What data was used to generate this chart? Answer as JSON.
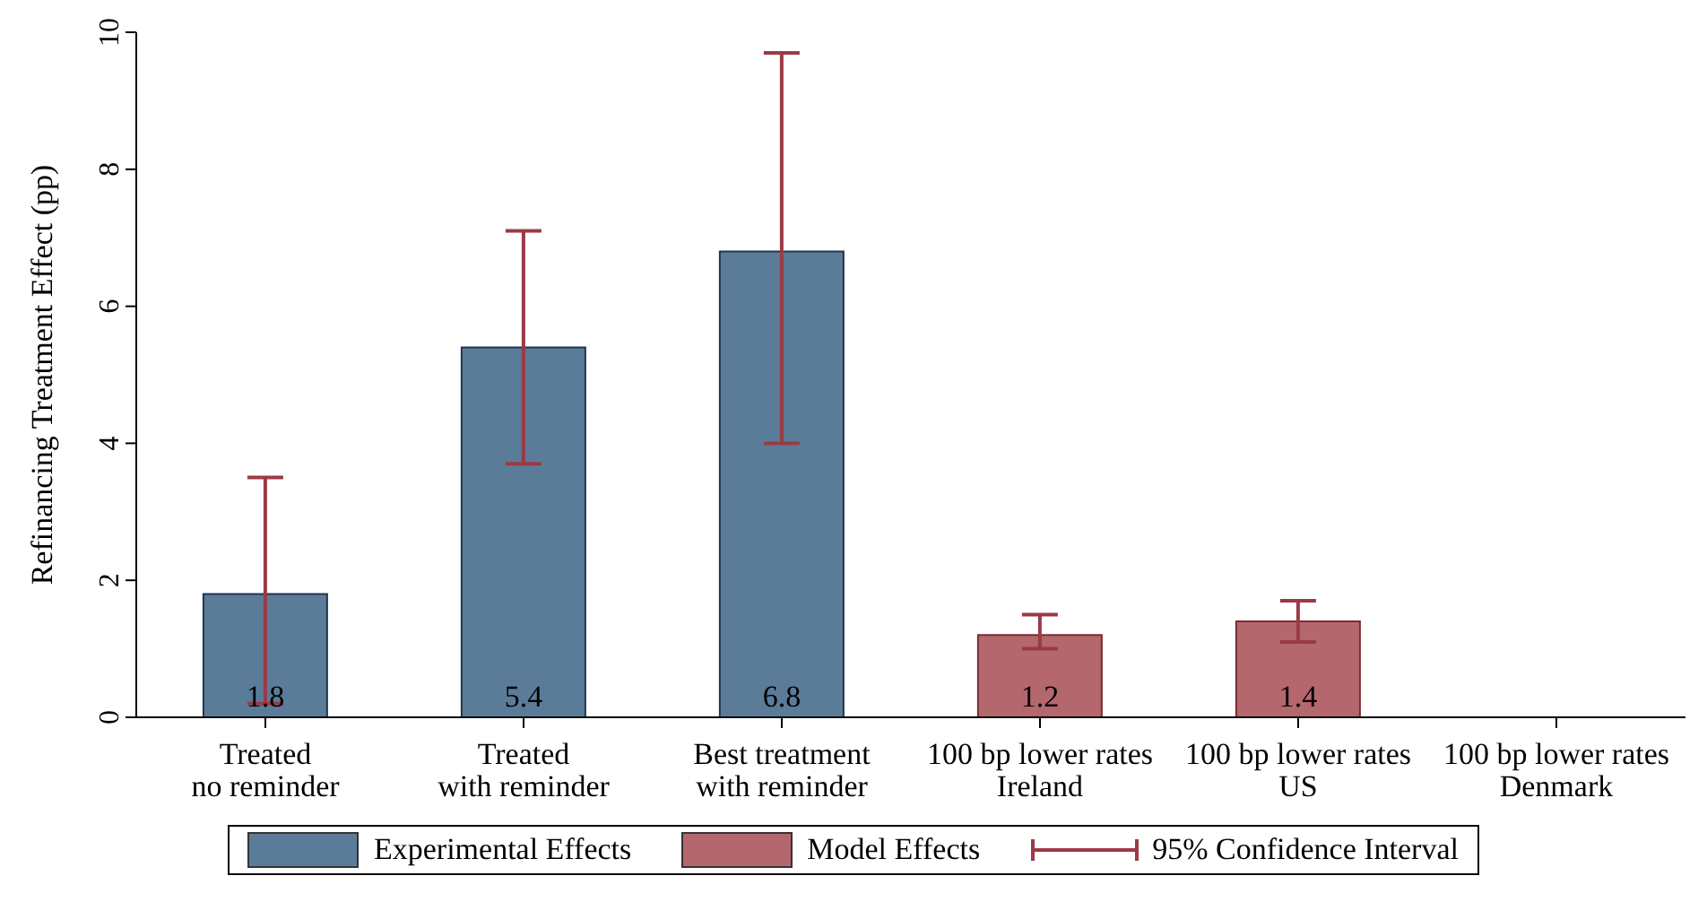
{
  "chart_data": {
    "type": "bar",
    "ylabel": "Refinancing Treatment Effect (pp)",
    "categories": [
      "Treated\nno reminder",
      "Treated\nwith reminder",
      "Best treatment\nwith reminder",
      "100 bp lower rates\nIreland",
      "100 bp lower rates\nUS",
      "100 bp lower rates\nDenmark"
    ],
    "series": [
      {
        "name": "Experimental Effects",
        "color": "#5b7c99",
        "values": [
          1.8,
          5.4,
          6.8,
          null,
          null,
          null
        ],
        "errors": [
          [
            0.2,
            3.5
          ],
          [
            3.7,
            7.1
          ],
          [
            4.0,
            9.7
          ],
          null,
          null,
          null
        ]
      },
      {
        "name": "Model Effects",
        "color": "#b5676e",
        "values": [
          null,
          null,
          null,
          1.2,
          1.4,
          null
        ],
        "errors": [
          null,
          null,
          null,
          [
            1.0,
            1.5
          ],
          [
            1.1,
            1.7
          ],
          null
        ]
      }
    ],
    "ylim": [
      0,
      10
    ],
    "yticks": [
      0,
      2,
      4,
      6,
      8,
      10
    ],
    "data_labels": true,
    "legend": "bottom",
    "annotations": [
      "95% Confidence Interval"
    ]
  }
}
